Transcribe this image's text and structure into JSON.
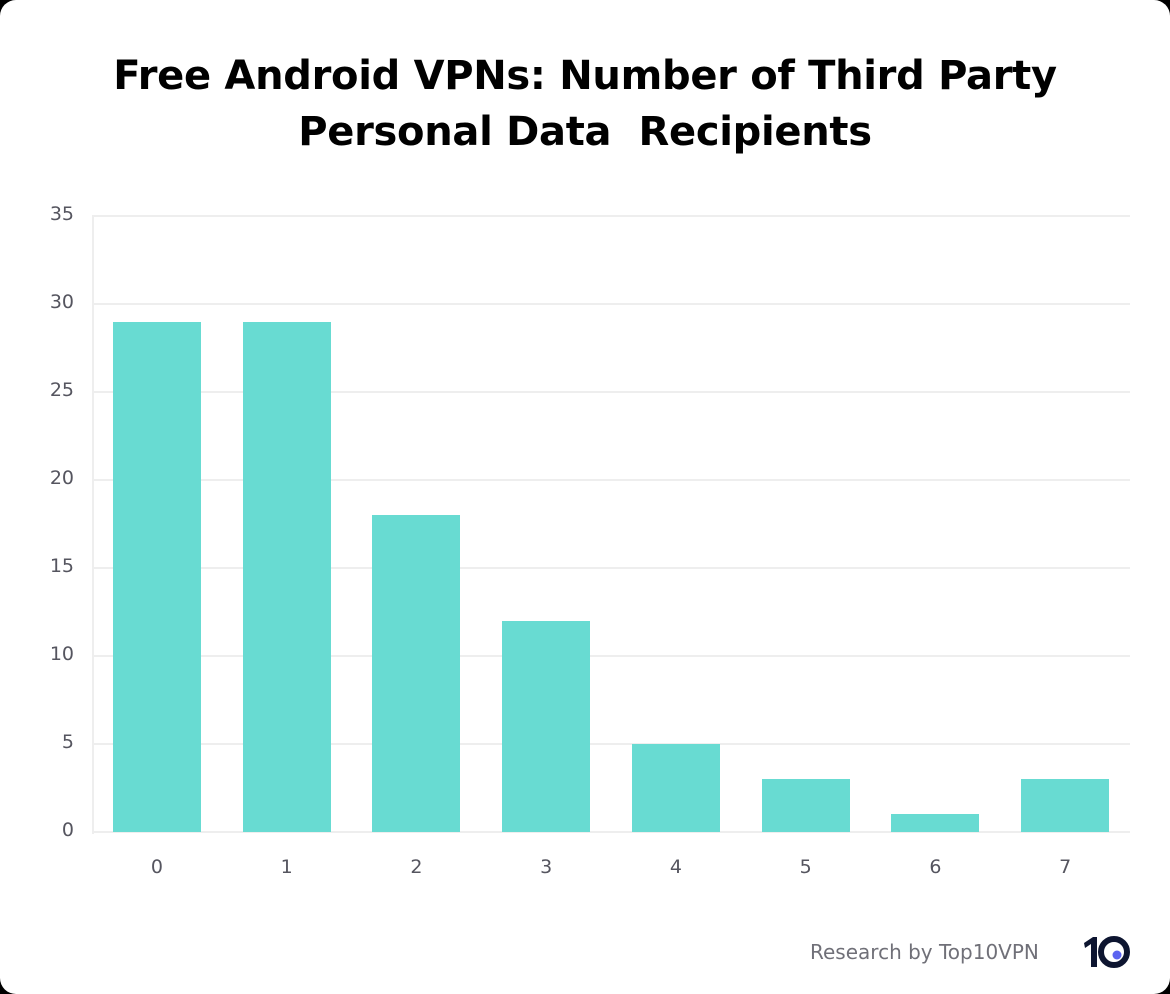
{
  "title": {
    "line1": "Free Android VPNs: Number of Third Party",
    "line2": "Personal Data  Recipients"
  },
  "footer": {
    "credit": "Research by Top10VPN",
    "logo": "top10vpn-logo-icon"
  },
  "colors": {
    "bar": "#68dbd2",
    "grid": "#eeeeee",
    "tick_text": "#55555f",
    "logo_dark": "#0d1530",
    "logo_dot": "#5b63f0"
  },
  "chart_data": {
    "type": "bar",
    "title": "Free Android VPNs: Number of Third Party Personal Data  Recipients",
    "xlabel": "",
    "ylabel": "",
    "categories": [
      "0",
      "1",
      "2",
      "3",
      "4",
      "5",
      "6",
      "7"
    ],
    "values": [
      29,
      29,
      18,
      12,
      5,
      3,
      1,
      3
    ],
    "ylim": [
      0,
      35
    ],
    "yticks": [
      "0",
      "5",
      "10",
      "15",
      "20",
      "25",
      "30",
      "35"
    ],
    "grid": true,
    "legend": null
  }
}
